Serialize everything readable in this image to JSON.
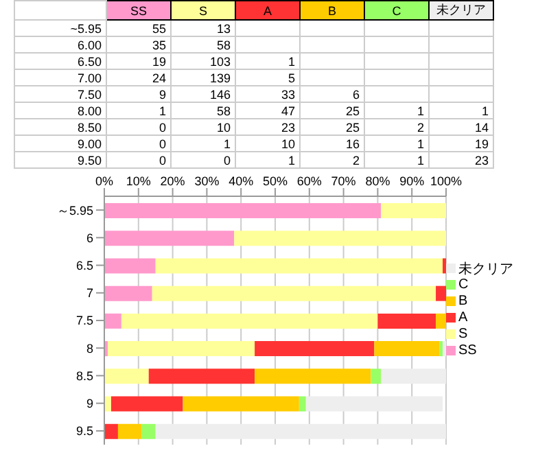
{
  "chart_data": [
    {
      "type": "heatmap",
      "categories": [
        "SS",
        "S",
        "A",
        "B",
        "C",
        "未クリア"
      ],
      "y_categories": [
        "~5.95",
        "6.00",
        "6.50",
        "7.00",
        "7.50",
        "8.00",
        "8.50",
        "9.00",
        "9.50"
      ],
      "cells": [
        [
          55,
          13,
          null,
          null,
          null,
          null
        ],
        [
          35,
          58,
          null,
          null,
          null,
          null
        ],
        [
          19,
          103,
          1,
          null,
          null,
          null
        ],
        [
          24,
          139,
          5,
          null,
          null,
          null
        ],
        [
          9,
          146,
          33,
          6,
          null,
          null
        ],
        [
          1,
          58,
          47,
          25,
          1,
          1
        ],
        [
          0,
          10,
          23,
          25,
          2,
          14
        ],
        [
          0,
          1,
          10,
          16,
          1,
          19
        ],
        [
          0,
          0,
          1,
          2,
          1,
          23
        ]
      ],
      "data_labels": true
    },
    {
      "type": "bar",
      "orientation": "horizontal",
      "stacked": true,
      "categories": [
        "～5.95",
        "6",
        "6.5",
        "7",
        "7.5",
        "8",
        "8.5",
        "9",
        "9.5"
      ],
      "series": [
        {
          "name": "SS",
          "color": "#ff99cc",
          "values": [
            81,
            38,
            15,
            14,
            5,
            1,
            0,
            0,
            0
          ]
        },
        {
          "name": "S",
          "color": "#ffff99",
          "values": [
            19,
            62,
            84,
            83,
            75,
            43,
            13,
            2,
            0
          ]
        },
        {
          "name": "A",
          "color": "#ff3333",
          "values": [
            null,
            null,
            1,
            3,
            17,
            35,
            31,
            21,
            4
          ]
        },
        {
          "name": "B",
          "color": "#ffcc00",
          "values": [
            null,
            null,
            null,
            null,
            3,
            19,
            34,
            34,
            7
          ]
        },
        {
          "name": "C",
          "color": "#99ff66",
          "values": [
            null,
            null,
            null,
            null,
            null,
            1,
            3,
            2,
            4
          ]
        },
        {
          "name": "未クリア",
          "color": "#eeeeee",
          "values": [
            null,
            null,
            null,
            null,
            null,
            1,
            19,
            40,
            85
          ]
        }
      ],
      "xlim": [
        0,
        100
      ],
      "xticks": [
        {
          "value": 0,
          "label": "0%"
        },
        {
          "value": 10,
          "label": "10%"
        },
        {
          "value": 20,
          "label": "20%"
        },
        {
          "value": 30,
          "label": "30%"
        },
        {
          "value": 40,
          "label": "40%"
        },
        {
          "value": 50,
          "label": "50%"
        },
        {
          "value": 60,
          "label": "60%"
        },
        {
          "value": 70,
          "label": "70%"
        },
        {
          "value": 80,
          "label": "80%"
        },
        {
          "value": 90,
          "label": "90%"
        },
        {
          "value": 100,
          "label": "100%"
        }
      ],
      "grid": "x",
      "legend": "right"
    }
  ]
}
